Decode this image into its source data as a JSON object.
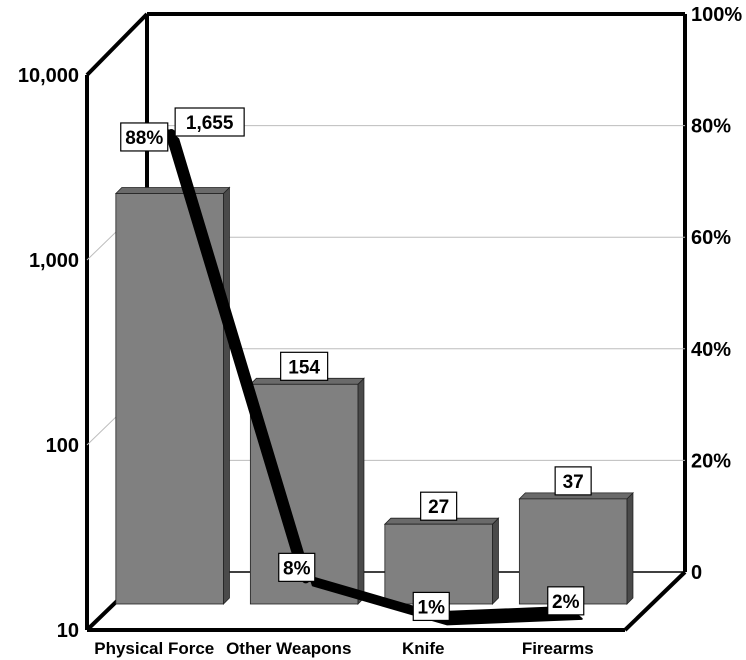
{
  "chart_data": {
    "type": "bar",
    "categories": [
      "Physical Force",
      "Other Weapons",
      "Knife",
      "Firearms"
    ],
    "series": [
      {
        "values": [
          1655,
          154,
          27,
          37
        ],
        "value_labels": [
          "1,655",
          "154",
          "27",
          "37"
        ],
        "axis": "left",
        "render": "bar"
      },
      {
        "values": [
          88,
          8,
          1,
          2
        ],
        "value_labels": [
          "88%",
          "8%",
          "1%",
          "2%"
        ],
        "axis": "right",
        "render": "line"
      }
    ],
    "y_left": {
      "scale": "log",
      "ylim": [
        10,
        10000
      ],
      "ticks": [
        10,
        100,
        1000,
        10000
      ],
      "tick_labels": [
        "10",
        "100",
        "1,000",
        "10,000"
      ]
    },
    "y_right": {
      "scale": "linear",
      "ylim": [
        0,
        100
      ],
      "ticks": [
        0,
        20,
        40,
        60,
        80,
        100
      ],
      "tick_labels": [
        "0",
        "20%",
        "40%",
        "60%",
        "80%",
        "100%"
      ]
    },
    "grid": true,
    "legend": "none",
    "three_d": true,
    "colors": {
      "bar_front": "#808080",
      "bar_side": "#4a4a4a",
      "bar_top": "#6a6a6a",
      "line": "#000000",
      "grid": "#bdbdbd",
      "frame": "#000000"
    }
  }
}
